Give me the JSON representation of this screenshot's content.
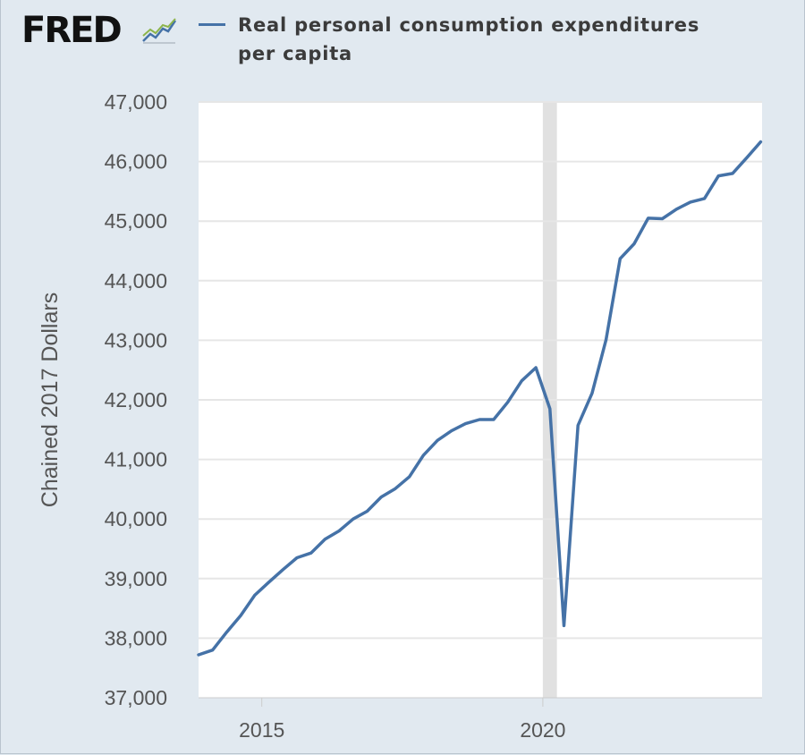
{
  "header": {
    "logo_text": "FRED",
    "logo_icon": "trend-line-icon"
  },
  "colors": {
    "series": "#4572a7",
    "recession": "#e1e1e1",
    "grid": "#e6e6e6",
    "background": "#e1e9f0"
  },
  "chart_data": {
    "type": "line",
    "title": "",
    "xlabel": "",
    "ylabel": "Chained 2017 Dollars",
    "xlim": [
      2013.875,
      2023.9
    ],
    "ylim": [
      37000,
      47000
    ],
    "yticks": [
      37000,
      38000,
      39000,
      40000,
      41000,
      42000,
      43000,
      44000,
      45000,
      46000,
      47000
    ],
    "ytick_labels": [
      "37,000",
      "38,000",
      "39,000",
      "40,000",
      "41,000",
      "42,000",
      "43,000",
      "44,000",
      "45,000",
      "46,000",
      "47,000"
    ],
    "xticks": [
      2015,
      2020
    ],
    "xtick_labels": [
      "2015",
      "2020"
    ],
    "recession": [
      2020.0,
      2020.25
    ],
    "series": [
      {
        "name": "Real personal consumption expenditures per capita",
        "x": [
          2013.875,
          2014.125,
          2014.375,
          2014.625,
          2014.875,
          2015.125,
          2015.375,
          2015.625,
          2015.875,
          2016.125,
          2016.375,
          2016.625,
          2016.875,
          2017.125,
          2017.375,
          2017.625,
          2017.875,
          2018.125,
          2018.375,
          2018.625,
          2018.875,
          2019.125,
          2019.375,
          2019.625,
          2019.875,
          2020.125,
          2020.375,
          2020.625,
          2020.875,
          2021.125,
          2021.375,
          2021.625,
          2021.875,
          2022.125,
          2022.375,
          2022.625,
          2022.875,
          2023.125,
          2023.375,
          2023.625,
          2023.875
        ],
        "values": [
          37720,
          37800,
          38100,
          38380,
          38720,
          38940,
          39150,
          39350,
          39430,
          39660,
          39800,
          40000,
          40130,
          40370,
          40510,
          40710,
          41070,
          41320,
          41480,
          41600,
          41670,
          41670,
          41960,
          42320,
          42540,
          41850,
          38210,
          41570,
          42110,
          43010,
          44370,
          44620,
          45050,
          45040,
          45200,
          45320,
          45380,
          45760,
          45800,
          46060,
          46330
        ]
      }
    ]
  }
}
